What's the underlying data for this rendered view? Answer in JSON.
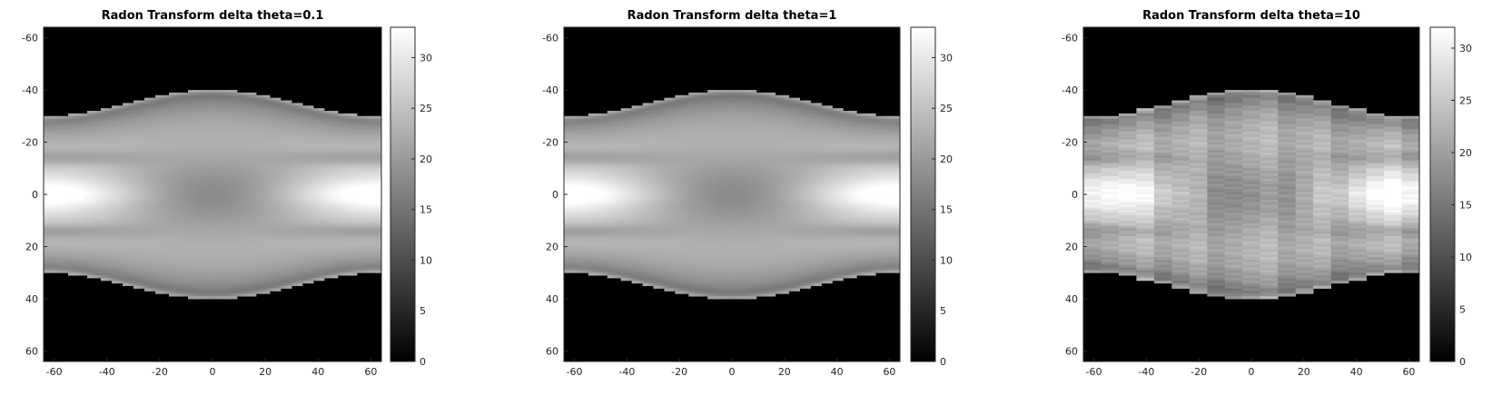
{
  "chart_data": [
    {
      "type": "heatmap",
      "title": "Radon Transform delta theta=0.1",
      "colormap": "gray",
      "xlim": [
        -64,
        64
      ],
      "ylim": [
        -64,
        64
      ],
      "y_reversed": true,
      "xticks": [
        -60,
        -40,
        -20,
        0,
        20,
        40,
        60
      ],
      "yticks": [
        -60,
        -40,
        -20,
        0,
        20,
        40,
        60
      ],
      "xtick_labels": [
        "-60",
        "-40",
        "-20",
        "0",
        "20",
        "40",
        "60"
      ],
      "ytick_labels": [
        "-60",
        "-40",
        "-20",
        "0",
        "20",
        "40",
        "60"
      ],
      "colorbar": {
        "range": [
          0,
          33
        ],
        "ticks": [
          0,
          5,
          10,
          15,
          20,
          25,
          30
        ],
        "tick_labels": [
          "0",
          "5",
          "10",
          "15",
          "20",
          "25",
          "30"
        ]
      },
      "angle_step_deg": 0.1
    },
    {
      "type": "heatmap",
      "title": "Radon Transform delta theta=1",
      "colormap": "gray",
      "xlim": [
        -64,
        64
      ],
      "ylim": [
        -64,
        64
      ],
      "y_reversed": true,
      "xticks": [
        -60,
        -40,
        -20,
        0,
        20,
        40,
        60
      ],
      "yticks": [
        -60,
        -40,
        -20,
        0,
        20,
        40,
        60
      ],
      "xtick_labels": [
        "-60",
        "-40",
        "-20",
        "0",
        "20",
        "40",
        "60"
      ],
      "ytick_labels": [
        "-60",
        "-40",
        "-20",
        "0",
        "20",
        "40",
        "60"
      ],
      "colorbar": {
        "range": [
          0,
          33
        ],
        "ticks": [
          0,
          5,
          10,
          15,
          20,
          25,
          30
        ],
        "tick_labels": [
          "0",
          "5",
          "10",
          "15",
          "20",
          "25",
          "30"
        ]
      },
      "angle_step_deg": 1
    },
    {
      "type": "heatmap",
      "title": "Radon Transform delta theta=10",
      "colormap": "gray",
      "xlim": [
        -64,
        64
      ],
      "ylim": [
        -64,
        64
      ],
      "y_reversed": true,
      "xticks": [
        -60,
        -40,
        -20,
        0,
        20,
        40,
        60
      ],
      "yticks": [
        -60,
        -40,
        -20,
        0,
        20,
        40,
        60
      ],
      "xtick_labels": [
        "-60",
        "-40",
        "-20",
        "0",
        "20",
        "40",
        "60"
      ],
      "ytick_labels": [
        "-60",
        "-40",
        "-20",
        "0",
        "20",
        "40",
        "60"
      ],
      "colorbar": {
        "range": [
          0,
          32
        ],
        "ticks": [
          0,
          5,
          10,
          15,
          20,
          25,
          30
        ],
        "tick_labels": [
          "0",
          "5",
          "10",
          "15",
          "20",
          "25",
          "30"
        ]
      },
      "angle_step_deg": 10
    }
  ]
}
